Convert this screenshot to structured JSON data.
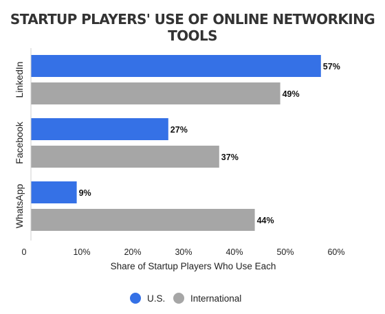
{
  "chart_data": {
    "type": "bar",
    "orientation": "horizontal",
    "title": "STARTUP PLAYERS' USE OF ONLINE NETWORKING TOOLS",
    "categories": [
      "LinkedIn",
      "Facebook",
      "WhatsApp"
    ],
    "series": [
      {
        "name": "U.S.",
        "color": "#3571e6",
        "values": [
          57,
          27,
          9
        ],
        "labels": [
          "57%",
          "27%",
          "9%"
        ]
      },
      {
        "name": "International",
        "color": "#a6a6a6",
        "values": [
          49,
          37,
          44
        ],
        "labels": [
          "49%",
          "37%",
          "44%"
        ]
      }
    ],
    "xlabel": "Share of Startup Players Who Use Each",
    "ylabel": "",
    "xlim": [
      0,
      60
    ],
    "ticks": [
      0,
      10,
      20,
      30,
      40,
      50,
      60
    ],
    "tick_labels": [
      "0",
      "10%",
      "20%",
      "30%",
      "40%",
      "50%",
      "60%"
    ],
    "grid": false,
    "legend_position": "bottom"
  }
}
